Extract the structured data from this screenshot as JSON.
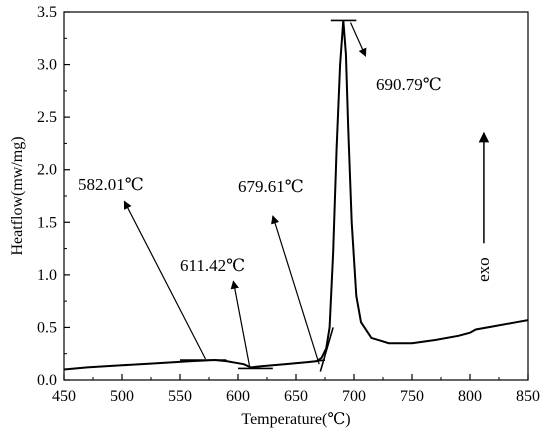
{
  "chart_data": {
    "type": "line",
    "title": "",
    "xlabel": "Temperature(℃)",
    "ylabel": "Heatflow(mw/mg)",
    "xlim": [
      450,
      850
    ],
    "ylim": [
      0,
      3.5
    ],
    "x_ticks": [
      "450",
      "500",
      "550",
      "600",
      "650",
      "700",
      "750",
      "800",
      "850"
    ],
    "y_ticks": [
      "0.0",
      "0.5",
      "1.0",
      "1.5",
      "2.0",
      "2.5",
      "3.0",
      "3.5"
    ],
    "grid": false,
    "series": [
      {
        "name": "",
        "points": [
          [
            450,
            0.1
          ],
          [
            470,
            0.12
          ],
          [
            500,
            0.14
          ],
          [
            530,
            0.16
          ],
          [
            560,
            0.18
          ],
          [
            580,
            0.19
          ],
          [
            590,
            0.18
          ],
          [
            600,
            0.16
          ],
          [
            605,
            0.15
          ],
          [
            611,
            0.12
          ],
          [
            620,
            0.13
          ],
          [
            640,
            0.15
          ],
          [
            660,
            0.17
          ],
          [
            668,
            0.18
          ],
          [
            672,
            0.21
          ],
          [
            676,
            0.3
          ],
          [
            679,
            0.5
          ],
          [
            682,
            1.2
          ],
          [
            685,
            2.2
          ],
          [
            688,
            3.0
          ],
          [
            690.79,
            3.42
          ],
          [
            693,
            3.1
          ],
          [
            695,
            2.4
          ],
          [
            698,
            1.5
          ],
          [
            702,
            0.8
          ],
          [
            706,
            0.55
          ],
          [
            715,
            0.4
          ],
          [
            730,
            0.35
          ],
          [
            750,
            0.35
          ],
          [
            770,
            0.38
          ],
          [
            790,
            0.42
          ],
          [
            800,
            0.45
          ],
          [
            805,
            0.48
          ],
          [
            820,
            0.51
          ],
          [
            840,
            0.55
          ],
          [
            850,
            0.57
          ]
        ]
      }
    ],
    "annotations": [
      {
        "label": "582.01℃",
        "x": 582.01,
        "y": 0.19
      },
      {
        "label": "611.42℃",
        "x": 611.42,
        "y": 0.12
      },
      {
        "label": "679.61℃",
        "x": 679.61,
        "y": 0.2
      },
      {
        "label": "690.79℃",
        "x": 690.79,
        "y": 3.42
      }
    ],
    "exo_label": "exo"
  }
}
